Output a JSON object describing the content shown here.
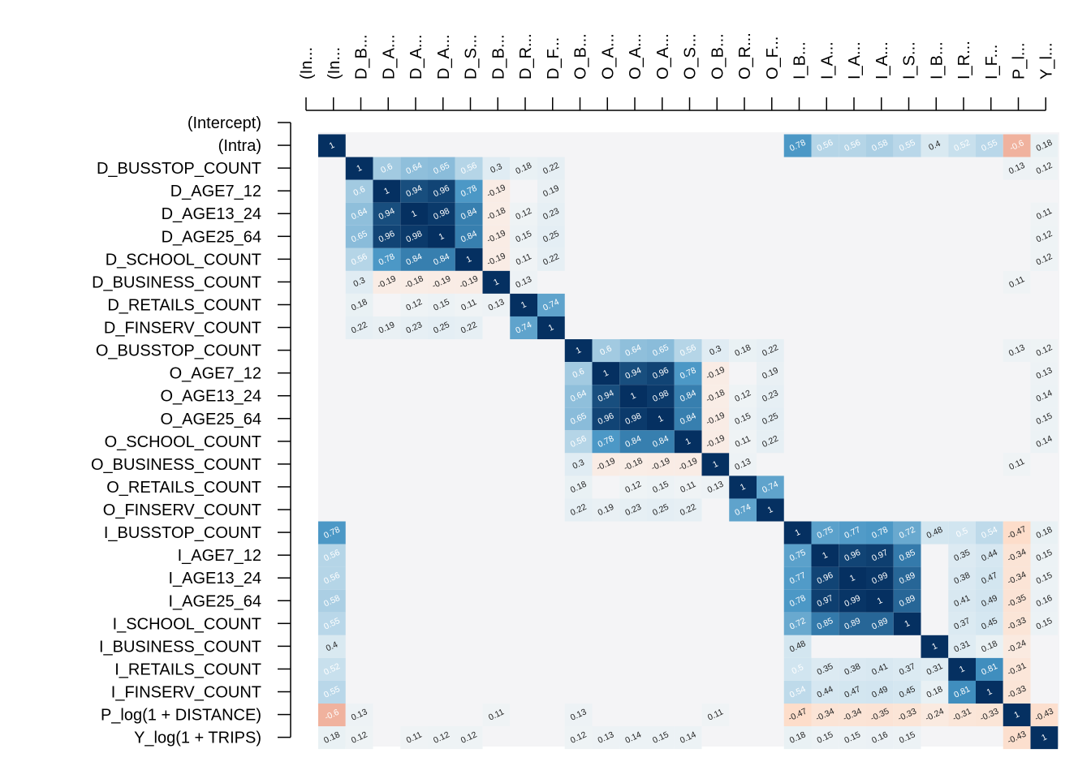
{
  "chart_data": {
    "type": "heatmap",
    "row_labels": [
      "(Intercept)",
      "(Intra)",
      "D_BUSSTOP_COUNT",
      "D_AGE7_12",
      "D_AGE13_24",
      "D_AGE25_64",
      "D_SCHOOL_COUNT",
      "D_BUSINESS_COUNT",
      "D_RETAILS_COUNT",
      "D_FINSERV_COUNT",
      "O_BUSSTOP_COUNT",
      "O_AGE7_12",
      "O_AGE13_24",
      "O_AGE25_64",
      "O_SCHOOL_COUNT",
      "O_BUSINESS_COUNT",
      "O_RETAILS_COUNT",
      "O_FINSERV_COUNT",
      "I_BUSSTOP_COUNT",
      "I_AGE7_12",
      "I_AGE13_24",
      "I_AGE25_64",
      "I_SCHOOL_COUNT",
      "I_BUSINESS_COUNT",
      "I_RETAILS_COUNT",
      "I_FINSERV_COUNT",
      "P_log(1 + DISTANCE)",
      "Y_log(1 + TRIPS)"
    ],
    "col_labels": [
      "(In...",
      "(In...",
      "D_B...",
      "D_A...",
      "D_A...",
      "D_A...",
      "D_S...",
      "D_B...",
      "D_R...",
      "D_F...",
      "O_B...",
      "O_A...",
      "O_A...",
      "O_A...",
      "O_S...",
      "O_B...",
      "O_R...",
      "O_F...",
      "I_B...",
      "I_A...",
      "I_A...",
      "I_A...",
      "I_S...",
      "I_B...",
      "I_R...",
      "I_F...",
      "P_l...",
      "Y_l..."
    ],
    "color_scale": {
      "negative": "#67001f",
      "zero": "#f7f7f7",
      "positive": "#053061",
      "min": -1,
      "max": 1
    },
    "cells": [
      {
        "r": 1,
        "c": 1,
        "v": 1
      },
      {
        "r": 1,
        "c": 18,
        "v": 0.78
      },
      {
        "r": 1,
        "c": 19,
        "v": 0.56
      },
      {
        "r": 1,
        "c": 20,
        "v": 0.56
      },
      {
        "r": 1,
        "c": 21,
        "v": 0.58
      },
      {
        "r": 1,
        "c": 22,
        "v": 0.55
      },
      {
        "r": 1,
        "c": 23,
        "v": 0.4
      },
      {
        "r": 1,
        "c": 24,
        "v": 0.52
      },
      {
        "r": 1,
        "c": 25,
        "v": 0.55
      },
      {
        "r": 1,
        "c": 26,
        "v": -0.6
      },
      {
        "r": 1,
        "c": 27,
        "v": 0.18
      },
      {
        "r": 2,
        "c": 2,
        "v": 1
      },
      {
        "r": 2,
        "c": 3,
        "v": 0.6
      },
      {
        "r": 2,
        "c": 4,
        "v": 0.64
      },
      {
        "r": 2,
        "c": 5,
        "v": 0.65
      },
      {
        "r": 2,
        "c": 6,
        "v": 0.56
      },
      {
        "r": 2,
        "c": 7,
        "v": 0.3
      },
      {
        "r": 2,
        "c": 8,
        "v": 0.18
      },
      {
        "r": 2,
        "c": 9,
        "v": 0.22
      },
      {
        "r": 2,
        "c": 26,
        "v": 0.13
      },
      {
        "r": 2,
        "c": 27,
        "v": 0.12
      },
      {
        "r": 3,
        "c": 2,
        "v": 0.6
      },
      {
        "r": 3,
        "c": 3,
        "v": 1
      },
      {
        "r": 3,
        "c": 4,
        "v": 0.94
      },
      {
        "r": 3,
        "c": 5,
        "v": 0.96
      },
      {
        "r": 3,
        "c": 6,
        "v": 0.78
      },
      {
        "r": 3,
        "c": 7,
        "v": -0.19
      },
      {
        "r": 3,
        "c": 9,
        "v": 0.19
      },
      {
        "r": 4,
        "c": 2,
        "v": 0.64
      },
      {
        "r": 4,
        "c": 3,
        "v": 0.94
      },
      {
        "r": 4,
        "c": 4,
        "v": 1
      },
      {
        "r": 4,
        "c": 5,
        "v": 0.98
      },
      {
        "r": 4,
        "c": 6,
        "v": 0.84
      },
      {
        "r": 4,
        "c": 7,
        "v": -0.18
      },
      {
        "r": 4,
        "c": 8,
        "v": 0.12
      },
      {
        "r": 4,
        "c": 9,
        "v": 0.23
      },
      {
        "r": 4,
        "c": 27,
        "v": 0.11
      },
      {
        "r": 5,
        "c": 2,
        "v": 0.65
      },
      {
        "r": 5,
        "c": 3,
        "v": 0.96
      },
      {
        "r": 5,
        "c": 4,
        "v": 0.98
      },
      {
        "r": 5,
        "c": 5,
        "v": 1
      },
      {
        "r": 5,
        "c": 6,
        "v": 0.84
      },
      {
        "r": 5,
        "c": 7,
        "v": -0.19
      },
      {
        "r": 5,
        "c": 8,
        "v": 0.15
      },
      {
        "r": 5,
        "c": 9,
        "v": 0.25
      },
      {
        "r": 5,
        "c": 27,
        "v": 0.12
      },
      {
        "r": 6,
        "c": 2,
        "v": 0.56
      },
      {
        "r": 6,
        "c": 3,
        "v": 0.78
      },
      {
        "r": 6,
        "c": 4,
        "v": 0.84
      },
      {
        "r": 6,
        "c": 5,
        "v": 0.84
      },
      {
        "r": 6,
        "c": 6,
        "v": 1
      },
      {
        "r": 6,
        "c": 7,
        "v": -0.19
      },
      {
        "r": 6,
        "c": 8,
        "v": 0.11
      },
      {
        "r": 6,
        "c": 9,
        "v": 0.22
      },
      {
        "r": 6,
        "c": 27,
        "v": 0.12
      },
      {
        "r": 7,
        "c": 2,
        "v": 0.3
      },
      {
        "r": 7,
        "c": 3,
        "v": -0.19
      },
      {
        "r": 7,
        "c": 4,
        "v": -0.18
      },
      {
        "r": 7,
        "c": 5,
        "v": -0.19
      },
      {
        "r": 7,
        "c": 6,
        "v": -0.19
      },
      {
        "r": 7,
        "c": 7,
        "v": 1
      },
      {
        "r": 7,
        "c": 8,
        "v": 0.13
      },
      {
        "r": 7,
        "c": 26,
        "v": 0.11
      },
      {
        "r": 8,
        "c": 2,
        "v": 0.18
      },
      {
        "r": 8,
        "c": 4,
        "v": 0.12
      },
      {
        "r": 8,
        "c": 5,
        "v": 0.15
      },
      {
        "r": 8,
        "c": 6,
        "v": 0.11
      },
      {
        "r": 8,
        "c": 7,
        "v": 0.13
      },
      {
        "r": 8,
        "c": 8,
        "v": 1
      },
      {
        "r": 8,
        "c": 9,
        "v": 0.74
      },
      {
        "r": 9,
        "c": 2,
        "v": 0.22
      },
      {
        "r": 9,
        "c": 3,
        "v": 0.19
      },
      {
        "r": 9,
        "c": 4,
        "v": 0.23
      },
      {
        "r": 9,
        "c": 5,
        "v": 0.25
      },
      {
        "r": 9,
        "c": 6,
        "v": 0.22
      },
      {
        "r": 9,
        "c": 8,
        "v": 0.74
      },
      {
        "r": 9,
        "c": 9,
        "v": 1
      },
      {
        "r": 10,
        "c": 10,
        "v": 1
      },
      {
        "r": 10,
        "c": 11,
        "v": 0.6
      },
      {
        "r": 10,
        "c": 12,
        "v": 0.64
      },
      {
        "r": 10,
        "c": 13,
        "v": 0.65
      },
      {
        "r": 10,
        "c": 14,
        "v": 0.56
      },
      {
        "r": 10,
        "c": 15,
        "v": 0.3
      },
      {
        "r": 10,
        "c": 16,
        "v": 0.18
      },
      {
        "r": 10,
        "c": 17,
        "v": 0.22
      },
      {
        "r": 10,
        "c": 26,
        "v": 0.13
      },
      {
        "r": 10,
        "c": 27,
        "v": 0.12
      },
      {
        "r": 11,
        "c": 10,
        "v": 0.6
      },
      {
        "r": 11,
        "c": 11,
        "v": 1
      },
      {
        "r": 11,
        "c": 12,
        "v": 0.94
      },
      {
        "r": 11,
        "c": 13,
        "v": 0.96
      },
      {
        "r": 11,
        "c": 14,
        "v": 0.78
      },
      {
        "r": 11,
        "c": 15,
        "v": -0.19
      },
      {
        "r": 11,
        "c": 17,
        "v": 0.19
      },
      {
        "r": 11,
        "c": 27,
        "v": 0.13
      },
      {
        "r": 12,
        "c": 10,
        "v": 0.64
      },
      {
        "r": 12,
        "c": 11,
        "v": 0.94
      },
      {
        "r": 12,
        "c": 12,
        "v": 1
      },
      {
        "r": 12,
        "c": 13,
        "v": 0.98
      },
      {
        "r": 12,
        "c": 14,
        "v": 0.84
      },
      {
        "r": 12,
        "c": 15,
        "v": -0.18
      },
      {
        "r": 12,
        "c": 16,
        "v": 0.12
      },
      {
        "r": 12,
        "c": 17,
        "v": 0.23
      },
      {
        "r": 12,
        "c": 27,
        "v": 0.14
      },
      {
        "r": 13,
        "c": 10,
        "v": 0.65
      },
      {
        "r": 13,
        "c": 11,
        "v": 0.96
      },
      {
        "r": 13,
        "c": 12,
        "v": 0.98
      },
      {
        "r": 13,
        "c": 13,
        "v": 1
      },
      {
        "r": 13,
        "c": 14,
        "v": 0.84
      },
      {
        "r": 13,
        "c": 15,
        "v": -0.19
      },
      {
        "r": 13,
        "c": 16,
        "v": 0.15
      },
      {
        "r": 13,
        "c": 17,
        "v": 0.25
      },
      {
        "r": 13,
        "c": 27,
        "v": 0.15
      },
      {
        "r": 14,
        "c": 10,
        "v": 0.56
      },
      {
        "r": 14,
        "c": 11,
        "v": 0.78
      },
      {
        "r": 14,
        "c": 12,
        "v": 0.84
      },
      {
        "r": 14,
        "c": 13,
        "v": 0.84
      },
      {
        "r": 14,
        "c": 14,
        "v": 1
      },
      {
        "r": 14,
        "c": 15,
        "v": -0.19
      },
      {
        "r": 14,
        "c": 16,
        "v": 0.11
      },
      {
        "r": 14,
        "c": 17,
        "v": 0.22
      },
      {
        "r": 14,
        "c": 27,
        "v": 0.14
      },
      {
        "r": 15,
        "c": 10,
        "v": 0.3
      },
      {
        "r": 15,
        "c": 11,
        "v": -0.19
      },
      {
        "r": 15,
        "c": 12,
        "v": -0.18
      },
      {
        "r": 15,
        "c": 13,
        "v": -0.19
      },
      {
        "r": 15,
        "c": 14,
        "v": -0.19
      },
      {
        "r": 15,
        "c": 15,
        "v": 1
      },
      {
        "r": 15,
        "c": 16,
        "v": 0.13
      },
      {
        "r": 15,
        "c": 26,
        "v": 0.11
      },
      {
        "r": 16,
        "c": 10,
        "v": 0.18
      },
      {
        "r": 16,
        "c": 12,
        "v": 0.12
      },
      {
        "r": 16,
        "c": 13,
        "v": 0.15
      },
      {
        "r": 16,
        "c": 14,
        "v": 0.11
      },
      {
        "r": 16,
        "c": 15,
        "v": 0.13
      },
      {
        "r": 16,
        "c": 16,
        "v": 1
      },
      {
        "r": 16,
        "c": 17,
        "v": 0.74
      },
      {
        "r": 17,
        "c": 10,
        "v": 0.22
      },
      {
        "r": 17,
        "c": 11,
        "v": 0.19
      },
      {
        "r": 17,
        "c": 12,
        "v": 0.23
      },
      {
        "r": 17,
        "c": 13,
        "v": 0.25
      },
      {
        "r": 17,
        "c": 14,
        "v": 0.22
      },
      {
        "r": 17,
        "c": 16,
        "v": 0.74
      },
      {
        "r": 17,
        "c": 17,
        "v": 1
      },
      {
        "r": 18,
        "c": 1,
        "v": 0.78
      },
      {
        "r": 18,
        "c": 18,
        "v": 1
      },
      {
        "r": 18,
        "c": 19,
        "v": 0.75
      },
      {
        "r": 18,
        "c": 20,
        "v": 0.77
      },
      {
        "r": 18,
        "c": 21,
        "v": 0.78
      },
      {
        "r": 18,
        "c": 22,
        "v": 0.72
      },
      {
        "r": 18,
        "c": 23,
        "v": 0.48
      },
      {
        "r": 18,
        "c": 24,
        "v": 0.5
      },
      {
        "r": 18,
        "c": 25,
        "v": 0.54
      },
      {
        "r": 18,
        "c": 26,
        "v": -0.47
      },
      {
        "r": 18,
        "c": 27,
        "v": 0.18
      },
      {
        "r": 19,
        "c": 1,
        "v": 0.56
      },
      {
        "r": 19,
        "c": 18,
        "v": 0.75
      },
      {
        "r": 19,
        "c": 19,
        "v": 1
      },
      {
        "r": 19,
        "c": 20,
        "v": 0.96
      },
      {
        "r": 19,
        "c": 21,
        "v": 0.97
      },
      {
        "r": 19,
        "c": 22,
        "v": 0.85
      },
      {
        "r": 19,
        "c": 24,
        "v": 0.35
      },
      {
        "r": 19,
        "c": 25,
        "v": 0.44
      },
      {
        "r": 19,
        "c": 26,
        "v": -0.34
      },
      {
        "r": 19,
        "c": 27,
        "v": 0.15
      },
      {
        "r": 20,
        "c": 1,
        "v": 0.56
      },
      {
        "r": 20,
        "c": 18,
        "v": 0.77
      },
      {
        "r": 20,
        "c": 19,
        "v": 0.96
      },
      {
        "r": 20,
        "c": 20,
        "v": 1
      },
      {
        "r": 20,
        "c": 21,
        "v": 0.99
      },
      {
        "r": 20,
        "c": 22,
        "v": 0.89
      },
      {
        "r": 20,
        "c": 24,
        "v": 0.38
      },
      {
        "r": 20,
        "c": 25,
        "v": 0.47
      },
      {
        "r": 20,
        "c": 26,
        "v": -0.34
      },
      {
        "r": 20,
        "c": 27,
        "v": 0.15
      },
      {
        "r": 21,
        "c": 1,
        "v": 0.58
      },
      {
        "r": 21,
        "c": 18,
        "v": 0.78
      },
      {
        "r": 21,
        "c": 19,
        "v": 0.97
      },
      {
        "r": 21,
        "c": 20,
        "v": 0.99
      },
      {
        "r": 21,
        "c": 21,
        "v": 1
      },
      {
        "r": 21,
        "c": 22,
        "v": 0.89
      },
      {
        "r": 21,
        "c": 24,
        "v": 0.41
      },
      {
        "r": 21,
        "c": 25,
        "v": 0.49
      },
      {
        "r": 21,
        "c": 26,
        "v": -0.35
      },
      {
        "r": 21,
        "c": 27,
        "v": 0.16
      },
      {
        "r": 22,
        "c": 1,
        "v": 0.55
      },
      {
        "r": 22,
        "c": 18,
        "v": 0.72
      },
      {
        "r": 22,
        "c": 19,
        "v": 0.85
      },
      {
        "r": 22,
        "c": 20,
        "v": 0.89
      },
      {
        "r": 22,
        "c": 21,
        "v": 0.89
      },
      {
        "r": 22,
        "c": 22,
        "v": 1
      },
      {
        "r": 22,
        "c": 24,
        "v": 0.37
      },
      {
        "r": 22,
        "c": 25,
        "v": 0.45
      },
      {
        "r": 22,
        "c": 26,
        "v": -0.33
      },
      {
        "r": 22,
        "c": 27,
        "v": 0.15
      },
      {
        "r": 23,
        "c": 1,
        "v": 0.4
      },
      {
        "r": 23,
        "c": 18,
        "v": 0.48
      },
      {
        "r": 23,
        "c": 23,
        "v": 1
      },
      {
        "r": 23,
        "c": 24,
        "v": 0.31
      },
      {
        "r": 23,
        "c": 25,
        "v": 0.18
      },
      {
        "r": 23,
        "c": 26,
        "v": -0.24
      },
      {
        "r": 24,
        "c": 1,
        "v": 0.52
      },
      {
        "r": 24,
        "c": 18,
        "v": 0.5
      },
      {
        "r": 24,
        "c": 19,
        "v": 0.35
      },
      {
        "r": 24,
        "c": 20,
        "v": 0.38
      },
      {
        "r": 24,
        "c": 21,
        "v": 0.41
      },
      {
        "r": 24,
        "c": 22,
        "v": 0.37
      },
      {
        "r": 24,
        "c": 23,
        "v": 0.31
      },
      {
        "r": 24,
        "c": 24,
        "v": 1
      },
      {
        "r": 24,
        "c": 25,
        "v": 0.81
      },
      {
        "r": 24,
        "c": 26,
        "v": -0.31
      },
      {
        "r": 25,
        "c": 1,
        "v": 0.55
      },
      {
        "r": 25,
        "c": 18,
        "v": 0.54
      },
      {
        "r": 25,
        "c": 19,
        "v": 0.44
      },
      {
        "r": 25,
        "c": 20,
        "v": 0.47
      },
      {
        "r": 25,
        "c": 21,
        "v": 0.49
      },
      {
        "r": 25,
        "c": 22,
        "v": 0.45
      },
      {
        "r": 25,
        "c": 23,
        "v": 0.18
      },
      {
        "r": 25,
        "c": 24,
        "v": 0.81
      },
      {
        "r": 25,
        "c": 25,
        "v": 1
      },
      {
        "r": 25,
        "c": 26,
        "v": -0.33
      },
      {
        "r": 26,
        "c": 1,
        "v": -0.6
      },
      {
        "r": 26,
        "c": 2,
        "v": 0.13
      },
      {
        "r": 26,
        "c": 7,
        "v": 0.11
      },
      {
        "r": 26,
        "c": 10,
        "v": 0.13
      },
      {
        "r": 26,
        "c": 15,
        "v": 0.11
      },
      {
        "r": 26,
        "c": 18,
        "v": -0.47
      },
      {
        "r": 26,
        "c": 19,
        "v": -0.34
      },
      {
        "r": 26,
        "c": 20,
        "v": -0.34
      },
      {
        "r": 26,
        "c": 21,
        "v": -0.35
      },
      {
        "r": 26,
        "c": 22,
        "v": -0.33
      },
      {
        "r": 26,
        "c": 23,
        "v": -0.24
      },
      {
        "r": 26,
        "c": 24,
        "v": -0.31
      },
      {
        "r": 26,
        "c": 25,
        "v": -0.33
      },
      {
        "r": 26,
        "c": 26,
        "v": 1
      },
      {
        "r": 26,
        "c": 27,
        "v": -0.43
      },
      {
        "r": 27,
        "c": 1,
        "v": 0.18
      },
      {
        "r": 27,
        "c": 2,
        "v": 0.12
      },
      {
        "r": 27,
        "c": 4,
        "v": 0.11
      },
      {
        "r": 27,
        "c": 5,
        "v": 0.12
      },
      {
        "r": 27,
        "c": 6,
        "v": 0.12
      },
      {
        "r": 27,
        "c": 10,
        "v": 0.12
      },
      {
        "r": 27,
        "c": 11,
        "v": 0.13
      },
      {
        "r": 27,
        "c": 12,
        "v": 0.14
      },
      {
        "r": 27,
        "c": 13,
        "v": 0.15
      },
      {
        "r": 27,
        "c": 14,
        "v": 0.14
      },
      {
        "r": 27,
        "c": 18,
        "v": 0.18
      },
      {
        "r": 27,
        "c": 19,
        "v": 0.15
      },
      {
        "r": 27,
        "c": 20,
        "v": 0.15
      },
      {
        "r": 27,
        "c": 21,
        "v": 0.16
      },
      {
        "r": 27,
        "c": 22,
        "v": 0.15
      },
      {
        "r": 27,
        "c": 26,
        "v": -0.43
      },
      {
        "r": 27,
        "c": 27,
        "v": 1
      }
    ]
  }
}
